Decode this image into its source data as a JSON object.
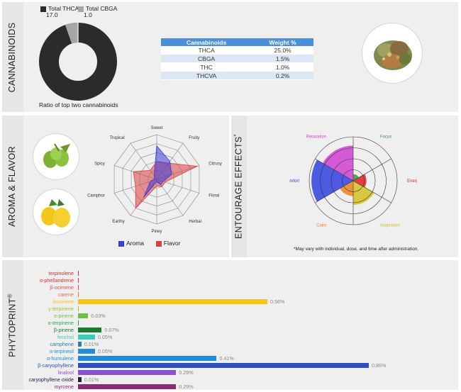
{
  "cannabinoids": {
    "section_title": "CANNABINOIDS",
    "donut": {
      "caption": "Ratio of top two cannabinoids",
      "legend": [
        {
          "label": "Total THCA",
          "value": "17.0",
          "color": "#2b2b2b"
        },
        {
          "label": "Total CBGA",
          "value": "1.0",
          "color": "#a6a6a6"
        }
      ]
    },
    "table": {
      "headers": [
        "Cannabinoids",
        "Weight %"
      ],
      "rows": [
        [
          "THCA",
          "25.0%"
        ],
        [
          "CBGA",
          "1.5%"
        ],
        [
          "THC",
          "1.0%"
        ],
        [
          "THCVA",
          "0.2%"
        ]
      ]
    },
    "image_icon": "cannabis-bud-image"
  },
  "aroma": {
    "section_title": "AROMA & FLAVOR",
    "images": [
      "hops-image",
      "lemon-image"
    ],
    "radar": {
      "axes": [
        "Sweet",
        "Fruity",
        "Citrusy",
        "Floral",
        "Herbal",
        "Piney",
        "Earthy",
        "Camphor",
        "Spicy",
        "Tropical"
      ],
      "aroma_values": [
        0.75,
        0.5,
        0.35,
        0.15,
        0.15,
        0.05,
        0.5,
        0.15,
        0.05,
        0.1
      ],
      "flavor_values": [
        0.4,
        0.45,
        0.95,
        0.2,
        0.2,
        0.15,
        0.8,
        0.5,
        0.55,
        0.25
      ],
      "legend": [
        {
          "label": "Aroma",
          "color": "#3b3bd9"
        },
        {
          "label": "Flavor",
          "color": "#d94040"
        }
      ]
    }
  },
  "entourage": {
    "section_title": "ENTOURAGE EFFECTS",
    "section_mark": "*",
    "footnote": "*May vary with individual, dose, and time after administration.",
    "effects": [
      {
        "label": "Focus",
        "color": "#2e9c3a",
        "value": 0.15
      },
      {
        "label": "Energy",
        "color": "#e02020",
        "value": 0.3
      },
      {
        "label": "Inspiration",
        "color": "#d4c020",
        "value": 0.55
      },
      {
        "label": "Calm",
        "color": "#f08020",
        "value": 0.35
      },
      {
        "label": "Comfort",
        "color": "#3040e0",
        "value": 0.95
      },
      {
        "label": "Relaxation",
        "color": "#d040d0",
        "value": 0.8
      }
    ]
  },
  "phytoprint": {
    "section_title": "PHYTOPRINT",
    "section_mark": "®",
    "max_value": 0.86,
    "terpenes": [
      {
        "name": "terpinolene",
        "value": 0.0,
        "label": "",
        "color": "#c0392b"
      },
      {
        "name": "α-phellandrene",
        "value": 0.0,
        "label": "",
        "color": "#e03030"
      },
      {
        "name": "β-ocimene",
        "value": 0.0,
        "label": "",
        "color": "#e84848"
      },
      {
        "name": "carene",
        "value": 0.0,
        "label": "",
        "color": "#f07040"
      },
      {
        "name": "limonene",
        "value": 0.56,
        "label": "0.56%",
        "color": "#f5c518"
      },
      {
        "name": "γ-terpinene",
        "value": 0.0,
        "label": "",
        "color": "#a8c020"
      },
      {
        "name": "α-pinene",
        "value": 0.03,
        "label": "0.03%",
        "color": "#70c040"
      },
      {
        "name": "α-terpinene",
        "value": 0.0,
        "label": "",
        "color": "#30a050"
      },
      {
        "name": "β-pinene",
        "value": 0.07,
        "label": "0.07%",
        "color": "#1a7a30"
      },
      {
        "name": "fenchol",
        "value": 0.05,
        "label": "0.05%",
        "color": "#40c8c0"
      },
      {
        "name": "camphene",
        "value": 0.01,
        "label": "0.01%",
        "color": "#3080a0"
      },
      {
        "name": "α-terpineol",
        "value": 0.05,
        "label": "0.05%",
        "color": "#2090d0"
      },
      {
        "name": "α-humulene",
        "value": 0.41,
        "label": "0.41%",
        "color": "#1f8ad8"
      },
      {
        "name": "β-caryophyllene",
        "value": 0.86,
        "label": "0.86%",
        "color": "#3050c0"
      },
      {
        "name": "linalool",
        "value": 0.29,
        "label": "0.29%",
        "color": "#8a50d0"
      },
      {
        "name": "caryophyllene oxide",
        "value": 0.01,
        "label": "0.01%",
        "color": "#2a1a40"
      },
      {
        "name": "myrcene",
        "value": 0.29,
        "label": "0.29%",
        "color": "#8a2a70"
      }
    ]
  }
}
